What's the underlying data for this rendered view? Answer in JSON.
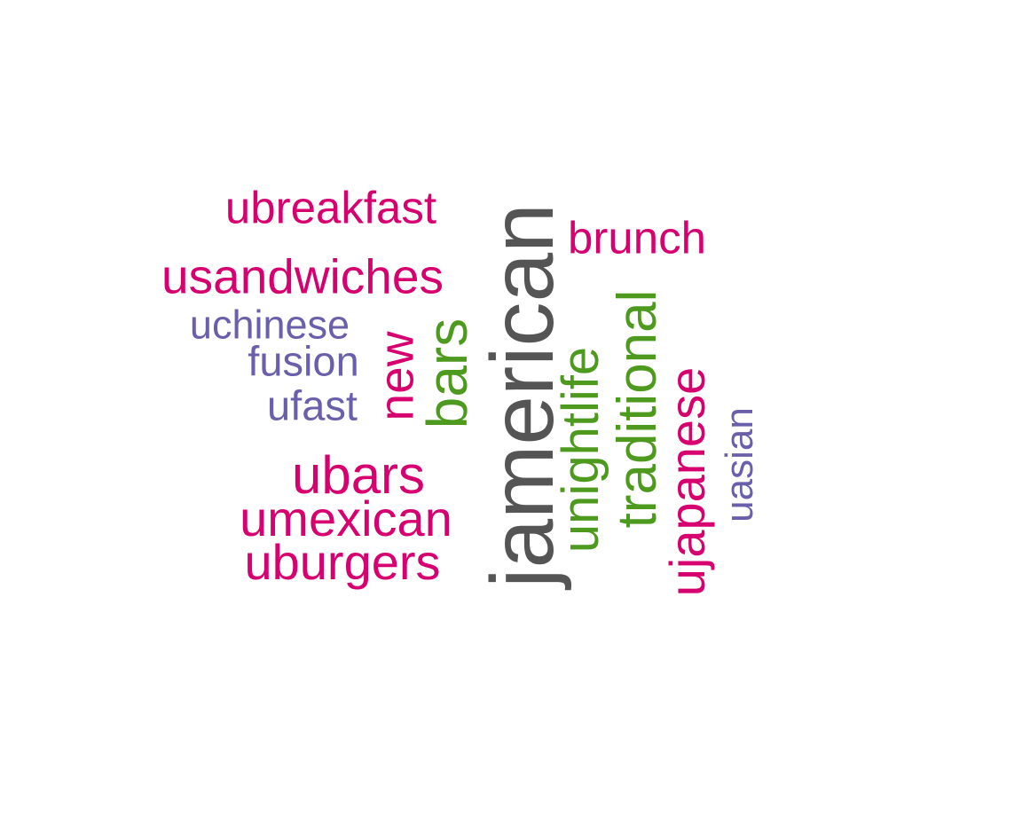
{
  "words": [
    {
      "text": "jamerican",
      "color": "#555555",
      "weight": 1.0
    },
    {
      "text": "ubreakfast",
      "color": "#d6006f",
      "weight": 0.3
    },
    {
      "text": "usandwiches",
      "color": "#d6006f",
      "weight": 0.33
    },
    {
      "text": "brunch",
      "color": "#d6006f",
      "weight": 0.3
    },
    {
      "text": "uchinese",
      "color": "#6a5faa",
      "weight": 0.27
    },
    {
      "text": "fusion",
      "color": "#6a5faa",
      "weight": 0.28
    },
    {
      "text": "ufast",
      "color": "#6a5faa",
      "weight": 0.27
    },
    {
      "text": "new",
      "color": "#d6006f",
      "weight": 0.33
    },
    {
      "text": "bars",
      "color": "#4e9a1e",
      "weight": 0.4
    },
    {
      "text": "unightlife",
      "color": "#4e9a1e",
      "weight": 0.37
    },
    {
      "text": "traditional",
      "color": "#4e9a1e",
      "weight": 0.4
    },
    {
      "text": "ujapanese",
      "color": "#d6006f",
      "weight": 0.35
    },
    {
      "text": "uasian",
      "color": "#6a5faa",
      "weight": 0.27
    },
    {
      "text": "ubars",
      "color": "#d6006f",
      "weight": 0.37
    },
    {
      "text": "umexican",
      "color": "#d6006f",
      "weight": 0.35
    },
    {
      "text": "uburgers",
      "color": "#d6006f",
      "weight": 0.35
    }
  ]
}
